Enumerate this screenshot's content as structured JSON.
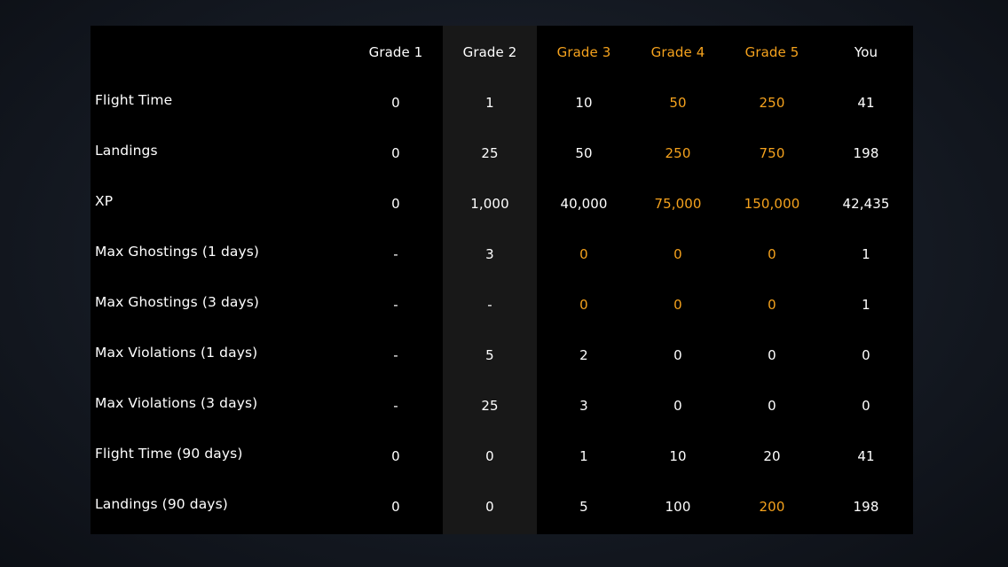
{
  "table": {
    "headers": [
      "Grade 1",
      "Grade 2",
      "Grade 3",
      "Grade 4",
      "Grade 5",
      "You"
    ],
    "header_colors": [
      "white",
      "white",
      "orange",
      "orange",
      "orange",
      "white"
    ],
    "rows": [
      {
        "label": "Flight Time",
        "values": [
          "0",
          "1",
          "10",
          "50",
          "250",
          "41"
        ],
        "colors": [
          "white",
          "white",
          "white",
          "orange",
          "orange",
          "white"
        ]
      },
      {
        "label": "Landings",
        "values": [
          "0",
          "25",
          "50",
          "250",
          "750",
          "198"
        ],
        "colors": [
          "white",
          "white",
          "white",
          "orange",
          "orange",
          "white"
        ]
      },
      {
        "label": "XP",
        "values": [
          "0",
          "1,000",
          "40,000",
          "75,000",
          "150,000",
          "42,435"
        ],
        "colors": [
          "white",
          "white",
          "white",
          "orange",
          "orange",
          "white"
        ]
      },
      {
        "label": "Max Ghostings (1 days)",
        "values": [
          "-",
          "3",
          "0",
          "0",
          "0",
          "1"
        ],
        "colors": [
          "white",
          "white",
          "orange",
          "orange",
          "orange",
          "white"
        ]
      },
      {
        "label": "Max Ghostings (3 days)",
        "values": [
          "-",
          "-",
          "0",
          "0",
          "0",
          "1"
        ],
        "colors": [
          "white",
          "white",
          "orange",
          "orange",
          "orange",
          "white"
        ]
      },
      {
        "label": "Max Violations (1 days)",
        "values": [
          "-",
          "5",
          "2",
          "0",
          "0",
          "0"
        ],
        "colors": [
          "white",
          "white",
          "white",
          "white",
          "white",
          "white"
        ]
      },
      {
        "label": "Max Violations (3 days)",
        "values": [
          "-",
          "25",
          "3",
          "0",
          "0",
          "0"
        ],
        "colors": [
          "white",
          "white",
          "white",
          "white",
          "white",
          "white"
        ]
      },
      {
        "label": "Flight Time (90 days)",
        "values": [
          "0",
          "0",
          "1",
          "10",
          "20",
          "41"
        ],
        "colors": [
          "white",
          "white",
          "white",
          "white",
          "white",
          "white"
        ]
      },
      {
        "label": "Landings (90 days)",
        "values": [
          "0",
          "0",
          "5",
          "100",
          "200",
          "198"
        ],
        "colors": [
          "white",
          "white",
          "white",
          "white",
          "orange",
          "white"
        ]
      }
    ]
  },
  "colors": {
    "accent_orange": "#f5a21d",
    "text_white": "#ffffff",
    "panel_bg": "#000000",
    "highlight_column_bg": "#181818"
  }
}
